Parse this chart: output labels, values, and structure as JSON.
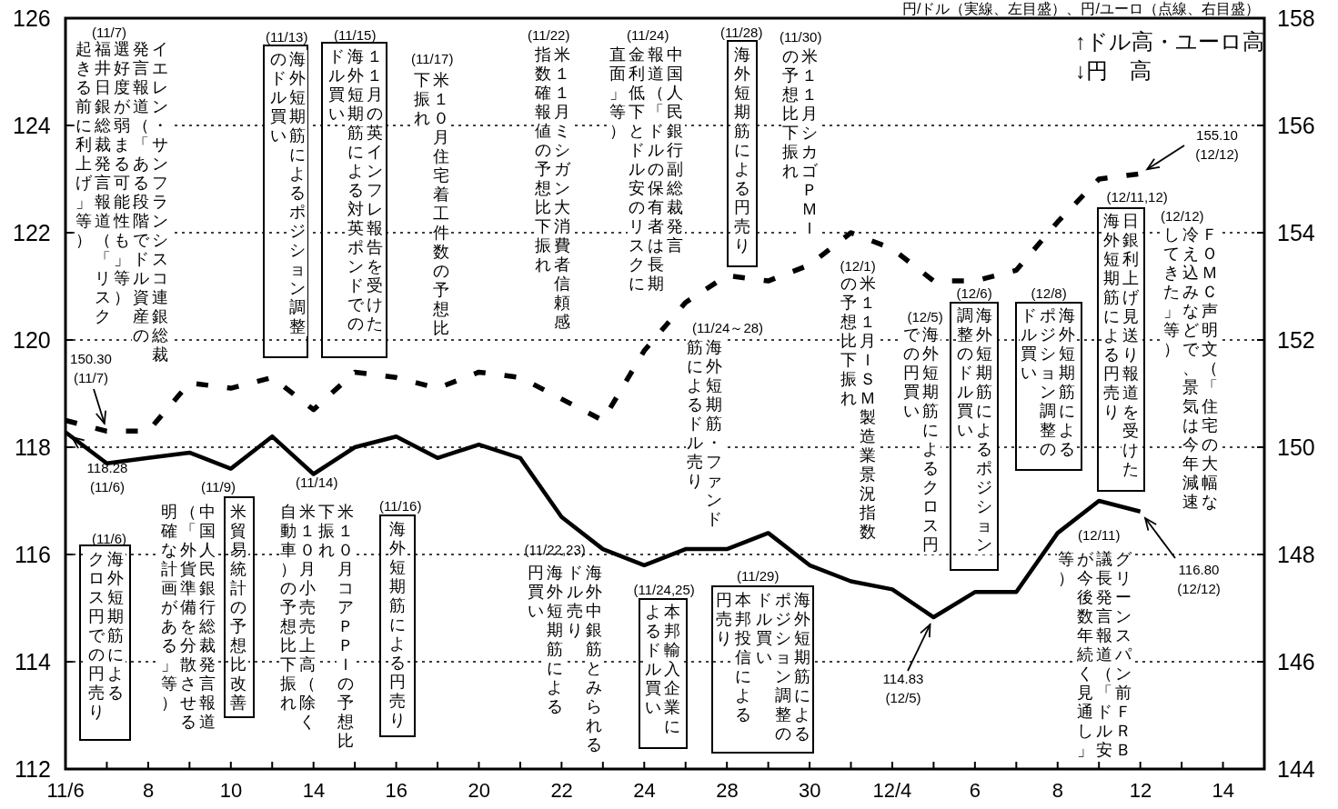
{
  "chart_data": {
    "type": "line",
    "title": "円/ドル（実線、左目盛）、円/ユーロ（点線、右目盛）",
    "categories": [
      "11/6",
      null,
      "8",
      null,
      "10",
      null,
      "14",
      null,
      "16",
      null,
      "20",
      null,
      "22",
      null,
      "24",
      null,
      "28",
      null,
      "30",
      null,
      "12/4",
      null,
      "6",
      null,
      "8",
      null,
      "12",
      null,
      "14",
      null
    ],
    "series": [
      {
        "color": "#000000",
        "line_style": "solid",
        "values": [
          118.28,
          117.7,
          117.8,
          117.9,
          117.6,
          118.2,
          117.5,
          118.0,
          118.2,
          117.8,
          118.05,
          117.8,
          116.7,
          116.1,
          115.8,
          116.1,
          116.1,
          116.4,
          115.8,
          115.5,
          115.35,
          114.83,
          115.3,
          115.3,
          116.4,
          117.0,
          116.8,
          null,
          null,
          null
        ]
      },
      {
        "color": "#000000",
        "line_style": "dashed",
        "axis": "y2",
        "values": [
          150.5,
          150.3,
          150.3,
          151.2,
          151.1,
          151.3,
          150.7,
          151.4,
          151.3,
          151.1,
          151.4,
          151.3,
          150.9,
          150.5,
          151.8,
          152.7,
          153.2,
          153.1,
          153.4,
          154.0,
          153.7,
          153.1,
          153.1,
          153.3,
          154.2,
          155.0,
          155.1,
          null,
          null,
          null
        ]
      }
    ],
    "ylim": [
      112,
      126
    ],
    "yticks": [
      112,
      114,
      116,
      118,
      120,
      122,
      124,
      126
    ],
    "y2lim": [
      144,
      158
    ],
    "y2ticks": [
      144,
      146,
      148,
      150,
      152,
      154,
      156,
      158
    ],
    "grid": "y",
    "annotations": [
      "↑ドル高・ユーロ高",
      "↓円　高",
      "(11/7)",
      "イエレン・サンフランシスコ連銀総裁発言報道（「ある段階でドル資産の選好度が弱まる可能性も」等）福井日銀総裁発言報道（「リスク起きる前に利上げ」等）",
      "(11/13)",
      "海外短期筋によるポジション調整のドル買い",
      "(11/15)",
      "１１月の英インフレ報告を受けた海外短期筋による対英ポンドでのドル買い",
      "(11/17)",
      "米１０月住宅着工件数の予想比下振れ",
      "(11/22)",
      "米１１月ミシガン大消費者信頼感指数確報値の予想比下振れ",
      "(11/24)",
      "中国人民銀行副総裁発言報道（「ドルの保有者は長期金利低下とドル安のリスクに直面」等）",
      "(11/28)",
      "海外短期筋による円売り",
      "(11/30)",
      "米１１月シカゴＰＭＩの予想比下振れ",
      "(11/24～28)",
      "海外短期筋・ファンド筋によるドル売り",
      "(12/1)",
      "米１１月ＩＳＭ製造業景況指数の予想比下振れ",
      "(12/5)",
      "海外短期筋によるクロス円での円買い",
      "(12/6)",
      "海外短期筋によるポジション調整のドル買い",
      "(12/8)",
      "海外短期筋によるポジション調整のドル買い",
      "(12/11,12)",
      "日銀利上げ見送り報道を受けた海外短期筋による円売り",
      "(12/12)",
      "ＦＯＭＣ声明文（「住宅の大幅な冷え込みなどで、景気は今年減速してきた」等）",
      "150.30 (11/7)",
      {
        "text": "118.28 (11/6)",
        "x": "11/6",
        "y": 118.28
      },
      "155.10 (12/12)",
      "(11/6)",
      "海外短期筋によるクロス円での円売り",
      "(11/9)",
      "中国人民銀行総裁発言報道（「外貨準備を分散させる明確な計画がある」等）",
      "米貿易統計の予想比改善",
      "(11/14)",
      "米１０月コアＰＰＩの予想比下振れ",
      "米１０月小売売上高（除く自動車）の予想比下振れ",
      "(11/16)",
      "海外短期筋による円売り",
      "(11/22,23)",
      "海外中銀筋とみられるドル売り",
      "海外短期筋による円買い",
      "(11/24,25)",
      "本邦輸入企業によるドル買い",
      "(11/29)",
      "海外短期筋によるポジション調整のドル買い",
      "本邦投信による円売り",
      "114.83 (12/5)",
      "(12/11)",
      "グリーンスパン前ＦＲＢ議長発言報道（「ドル安が今後数年続く見通し」等）",
      {
        "text": "116.80 (12/12)",
        "x": "12",
        "y": 116.8
      }
    ]
  }
}
